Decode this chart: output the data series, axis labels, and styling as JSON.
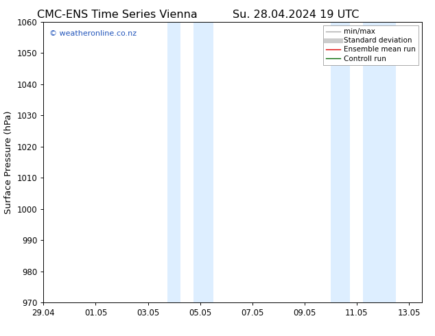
{
  "title_left": "CMC-ENS Time Series Vienna",
  "title_right": "Su. 28.04.2024 19 UTC",
  "ylabel": "Surface Pressure (hPa)",
  "ylim": [
    970,
    1060
  ],
  "yticks": [
    970,
    980,
    990,
    1000,
    1010,
    1020,
    1030,
    1040,
    1050,
    1060
  ],
  "xlim": [
    0,
    14.5
  ],
  "xtick_labels": [
    "29.04",
    "01.05",
    "03.05",
    "05.05",
    "07.05",
    "09.05",
    "11.05",
    "13.05"
  ],
  "xtick_positions": [
    0,
    2,
    4,
    6,
    8,
    10,
    12,
    14
  ],
  "shaded_regions": [
    {
      "start": 4.75,
      "end": 5.25
    },
    {
      "start": 5.75,
      "end": 6.5
    },
    {
      "start": 11.0,
      "end": 11.75
    },
    {
      "start": 12.25,
      "end": 13.5
    }
  ],
  "shaded_color": "#ddeeff",
  "watermark_text": "© weatheronline.co.nz",
  "watermark_color": "#2255bb",
  "legend_items": [
    {
      "label": "min/max",
      "color": "#aaaaaa",
      "lw": 1.0,
      "style": "-"
    },
    {
      "label": "Standard deviation",
      "color": "#cccccc",
      "lw": 5,
      "style": "-"
    },
    {
      "label": "Ensemble mean run",
      "color": "#dd0000",
      "lw": 1.0,
      "style": "-"
    },
    {
      "label": "Controll run",
      "color": "#006600",
      "lw": 1.0,
      "style": "-"
    }
  ],
  "background_color": "#ffffff",
  "tick_label_fontsize": 8.5,
  "axis_label_fontsize": 9.5,
  "title_fontsize": 11.5
}
